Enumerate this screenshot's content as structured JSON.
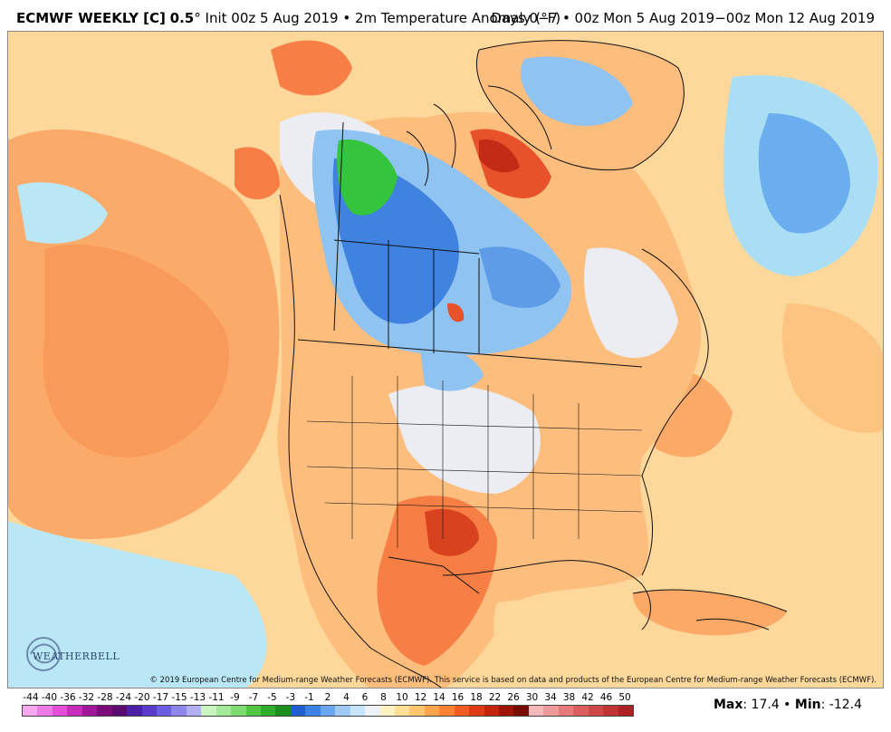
{
  "header": {
    "model": "ECMWF WEEKLY [C]",
    "resolution": "0.5",
    "degree": "°",
    "init": "Init 00z 5 Aug 2019",
    "bullet": "•",
    "field": "2m Temperature Anomaly (°F)",
    "valid": "Days 0−7 • 00z Mon 5 Aug 2019−00z Mon 12 Aug 2019"
  },
  "copyright": "© 2019 European Centre for Medium-range Weather Forecasts (ECMWF). This service is based on data and products of the European Centre for Medium-range Weather Forecasts (ECMWF).",
  "logo": {
    "text": "WEATHERBELL",
    "icon": "weatherbell-swirl-icon"
  },
  "stats": {
    "max_label": "Max",
    "max_value": ": 17.4",
    "sep": " • ",
    "min_label": "Min",
    "min_value": ": -12.4"
  },
  "colorbar": {
    "labels": [
      "-44",
      "-40",
      "-36",
      "-32",
      "-28",
      "-24",
      "-20",
      "-17",
      "-15",
      "-13",
      "-11",
      "-9",
      "-7",
      "-5",
      "-3",
      "-1",
      "2",
      "4",
      "6",
      "8",
      "10",
      "12",
      "14",
      "16",
      "18",
      "22",
      "26",
      "30",
      "34",
      "38",
      "42",
      "46",
      "50"
    ],
    "colors": [
      "#f5a8f0",
      "#ee7ae6",
      "#e44ed8",
      "#c82cbb",
      "#a2169a",
      "#7d0a7a",
      "#5a0a6e",
      "#4b1fa8",
      "#5a3ccc",
      "#6d5de0",
      "#8f86ec",
      "#b3aff4",
      "#c9f3c0",
      "#a4eb99",
      "#7ddc6f",
      "#4fc742",
      "#2ead2a",
      "#1c8f1f",
      "#1f5fcf",
      "#3c82e6",
      "#6aa7f0",
      "#9fcaf6",
      "#c6e4fa",
      "#edf2f7",
      "#fff2c2",
      "#ffdf96",
      "#ffc66e",
      "#ffa44d",
      "#ff8233",
      "#f25c22",
      "#de3a14",
      "#c4240c",
      "#9e1508",
      "#7a0c06",
      "#f5b8b8",
      "#ee9a9a",
      "#e67a7a",
      "#dc5e5e",
      "#cf4848",
      "#c03434",
      "#ad2222"
    ]
  },
  "map": {
    "description_colors": {
      "ocean": "#fde3b0",
      "warm_light": "#fdcf8e",
      "warm": "#fca968",
      "warm_strong": "#f77f45",
      "hot": "#e8522b",
      "very_hot": "#c42b17",
      "neutral": "#ecedf2",
      "cool_light": "#b9e7f5",
      "cool": "#8fc3f2",
      "cool_mid": "#5e9ce8",
      "cold": "#2f6fd6",
      "very_cold": "#35c43d"
    }
  }
}
